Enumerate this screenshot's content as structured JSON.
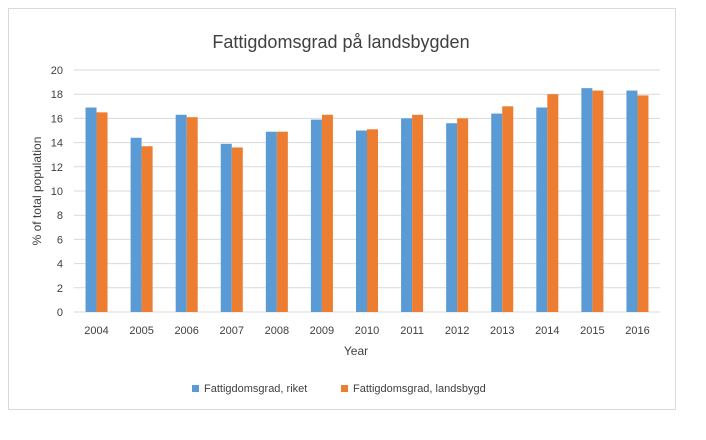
{
  "chart_data": {
    "type": "bar",
    "title": "Fattigdomsgrad på landsbygden",
    "xlabel": "Year",
    "ylabel": "% of total population",
    "categories": [
      "2004",
      "2005",
      "2006",
      "2007",
      "2008",
      "2009",
      "2010",
      "2011",
      "2012",
      "2013",
      "2014",
      "2015",
      "2016"
    ],
    "series": [
      {
        "name": "Fattigdomsgrad, riket",
        "color": "#5b9bd5",
        "values": [
          16.9,
          14.4,
          16.3,
          13.9,
          14.9,
          15.9,
          15.0,
          16.0,
          15.6,
          16.4,
          16.9,
          18.5,
          18.3
        ]
      },
      {
        "name": "Fattigdomsgrad, landsbygd",
        "color": "#ed7d31",
        "values": [
          16.5,
          13.7,
          16.1,
          13.6,
          14.9,
          16.3,
          15.1,
          16.3,
          16.0,
          17.0,
          18.0,
          18.3,
          17.9
        ]
      }
    ],
    "ylim": [
      0,
      20
    ],
    "yticks": [
      0,
      2,
      4,
      6,
      8,
      10,
      12,
      14,
      16,
      18,
      20
    ],
    "grid": true,
    "legend": "bottom"
  }
}
